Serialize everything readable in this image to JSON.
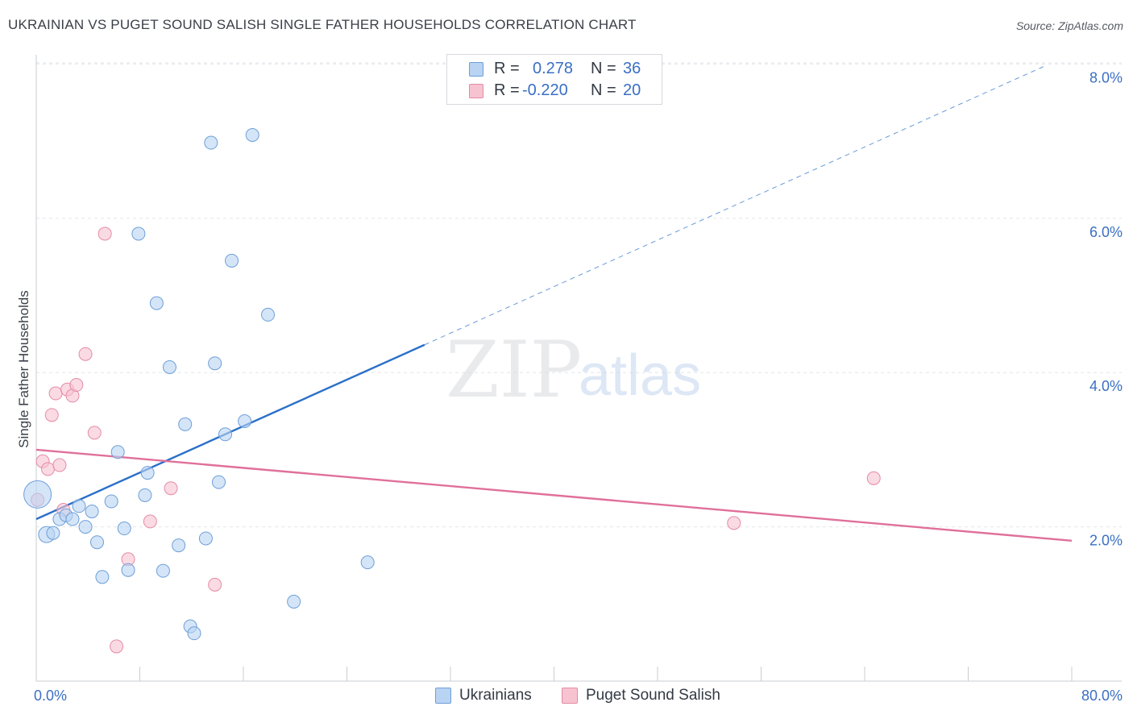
{
  "header": {
    "title": "UKRAINIAN VS PUGET SOUND SALISH SINGLE FATHER HOUSEHOLDS CORRELATION CHART",
    "source": "Source: ZipAtlas.com"
  },
  "watermark": {
    "zip": "ZIP",
    "atlas": "atlas"
  },
  "legend": {
    "r_label": "R =",
    "n_label": "N =",
    "ukrainians": {
      "r": "0.278",
      "n": "36"
    },
    "salish": {
      "r": "-0.220",
      "n": "20"
    }
  },
  "bottom_legend": {
    "ukrainians": "Ukrainians",
    "salish": "Puget Sound Salish"
  },
  "colors": {
    "blue_fill": "#b9d3f3",
    "blue_stroke": "#6d9fd8",
    "blue_line": "#2a6fc9",
    "pink_fill": "#f7c3d1",
    "pink_stroke": "#e58aa6",
    "pink_line": "#e0709a",
    "tick_label": "#3a6fc4"
  },
  "chart_data": {
    "type": "scatter",
    "title": "UKRAINIAN VS PUGET SOUND SALISH SINGLE FATHER HOUSEHOLDS CORRELATION CHART",
    "xlabel": "",
    "ylabel": "Single Father Households",
    "xlim": [
      0,
      80
    ],
    "ylim": [
      0,
      8.3
    ],
    "x_tick_labels": [
      "0.0%",
      "80.0%"
    ],
    "y_ticks": [
      2,
      4,
      6,
      8
    ],
    "y_tick_labels": [
      "2.0%",
      "4.0%",
      "6.0%",
      "8.0%"
    ],
    "grid": true,
    "series": [
      {
        "name": "Ukrainians",
        "r": 0.278,
        "n": 36,
        "points": [
          [
            0.1,
            2.42
          ],
          [
            0.8,
            1.9
          ],
          [
            1.3,
            1.92
          ],
          [
            1.8,
            2.1
          ],
          [
            2.3,
            2.15
          ],
          [
            2.8,
            2.1
          ],
          [
            3.3,
            2.27
          ],
          [
            3.8,
            2.0
          ],
          [
            4.3,
            2.2
          ],
          [
            4.7,
            1.8
          ],
          [
            5.1,
            1.35
          ],
          [
            5.8,
            2.33
          ],
          [
            6.3,
            2.97
          ],
          [
            6.8,
            1.98
          ],
          [
            7.1,
            1.44
          ],
          [
            7.9,
            5.8
          ],
          [
            8.4,
            2.41
          ],
          [
            8.6,
            2.7
          ],
          [
            9.3,
            4.9
          ],
          [
            9.8,
            1.43
          ],
          [
            10.3,
            4.07
          ],
          [
            11.0,
            1.76
          ],
          [
            11.5,
            3.33
          ],
          [
            11.9,
            0.71
          ],
          [
            12.2,
            0.62
          ],
          [
            13.1,
            1.85
          ],
          [
            13.5,
            6.98
          ],
          [
            13.8,
            4.12
          ],
          [
            14.1,
            2.58
          ],
          [
            14.6,
            3.2
          ],
          [
            15.1,
            5.45
          ],
          [
            16.1,
            3.37
          ],
          [
            16.7,
            7.08
          ],
          [
            17.9,
            4.75
          ],
          [
            19.9,
            1.03
          ],
          [
            25.6,
            1.54
          ]
        ],
        "trend": {
          "x": [
            0,
            30
          ],
          "y": [
            2.1,
            4.36
          ],
          "extended_x": [
            30,
            78
          ],
          "extended_y": [
            4.36,
            7.98
          ]
        }
      },
      {
        "name": "Puget Sound Salish",
        "r": -0.22,
        "n": 20,
        "points": [
          [
            0.1,
            2.35
          ],
          [
            0.5,
            2.85
          ],
          [
            0.9,
            2.75
          ],
          [
            1.2,
            3.45
          ],
          [
            1.5,
            3.73
          ],
          [
            1.8,
            2.8
          ],
          [
            2.1,
            2.22
          ],
          [
            2.4,
            3.78
          ],
          [
            2.8,
            3.7
          ],
          [
            3.1,
            3.84
          ],
          [
            3.8,
            4.24
          ],
          [
            4.5,
            3.22
          ],
          [
            5.3,
            5.8
          ],
          [
            6.2,
            0.45
          ],
          [
            7.1,
            1.58
          ],
          [
            8.8,
            2.07
          ],
          [
            10.4,
            2.5
          ],
          [
            13.8,
            1.25
          ],
          [
            53.9,
            2.05
          ],
          [
            64.7,
            2.63
          ]
        ],
        "trend": {
          "x": [
            0,
            80
          ],
          "y": [
            3.0,
            1.82
          ]
        }
      }
    ]
  }
}
